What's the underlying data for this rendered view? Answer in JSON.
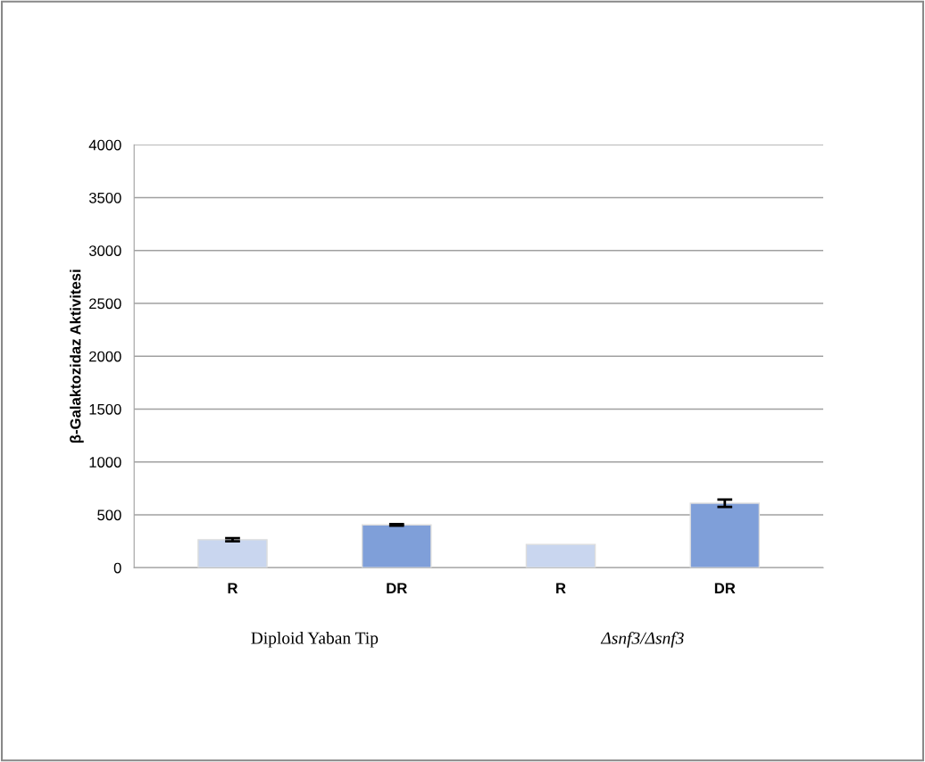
{
  "chart_data": {
    "type": "bar",
    "ylabel": "β-Galaktozidaz Aktivitesi",
    "categories": [
      "R",
      "DR",
      "R",
      "DR"
    ],
    "values": [
      265,
      405,
      220,
      610
    ],
    "errors": [
      15,
      8,
      null,
      35
    ],
    "colors": [
      "#c9d6ef",
      "#7f9fd9",
      "#c9d6ef",
      "#7f9fd9"
    ],
    "ylim": [
      0,
      4000
    ],
    "yticks": [
      0,
      500,
      1000,
      1500,
      2000,
      2500,
      3000,
      3500,
      4000
    ],
    "grid": "y",
    "annotations": [
      "Diploid Yaban Tip",
      "Δsnf3/Δsnf3"
    ]
  }
}
